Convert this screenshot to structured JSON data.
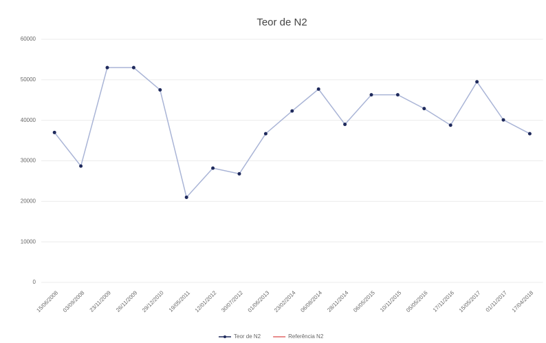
{
  "chart_data": {
    "type": "line",
    "title": "Teor de N2",
    "categories": [
      "15/06/2008",
      "03/09/2008",
      "23/11/2009",
      "26/11/2009",
      "29/12/2010",
      "19/05/2011",
      "12/01/2012",
      "30/07/2012",
      "01/06/2013",
      "23/02/2014",
      "06/08/2014",
      "28/11/2014",
      "06/05/2015",
      "10/11/2015",
      "05/05/2016",
      "17/11/2016",
      "15/05/2017",
      "01/11/2017",
      "17/04/2018"
    ],
    "series": [
      {
        "name": "Teor de N2",
        "color": "#a9b4d6",
        "marker_color": "#1f2a5c",
        "values": [
          37000,
          28700,
          53000,
          53000,
          47500,
          21000,
          28200,
          26800,
          36700,
          42300,
          47700,
          39000,
          46300,
          46300,
          42900,
          38800,
          49500,
          40100,
          36700
        ]
      },
      {
        "name": "Referência N2",
        "color": "#e06666",
        "values": [
          null,
          null,
          null,
          null,
          null,
          null,
          null,
          null,
          null,
          null,
          null,
          null,
          null,
          null,
          null,
          null,
          null,
          null,
          null
        ]
      }
    ],
    "ylim": [
      0,
      60000
    ],
    "yticks": [
      0,
      10000,
      20000,
      30000,
      40000,
      50000,
      60000
    ],
    "grid": true
  }
}
